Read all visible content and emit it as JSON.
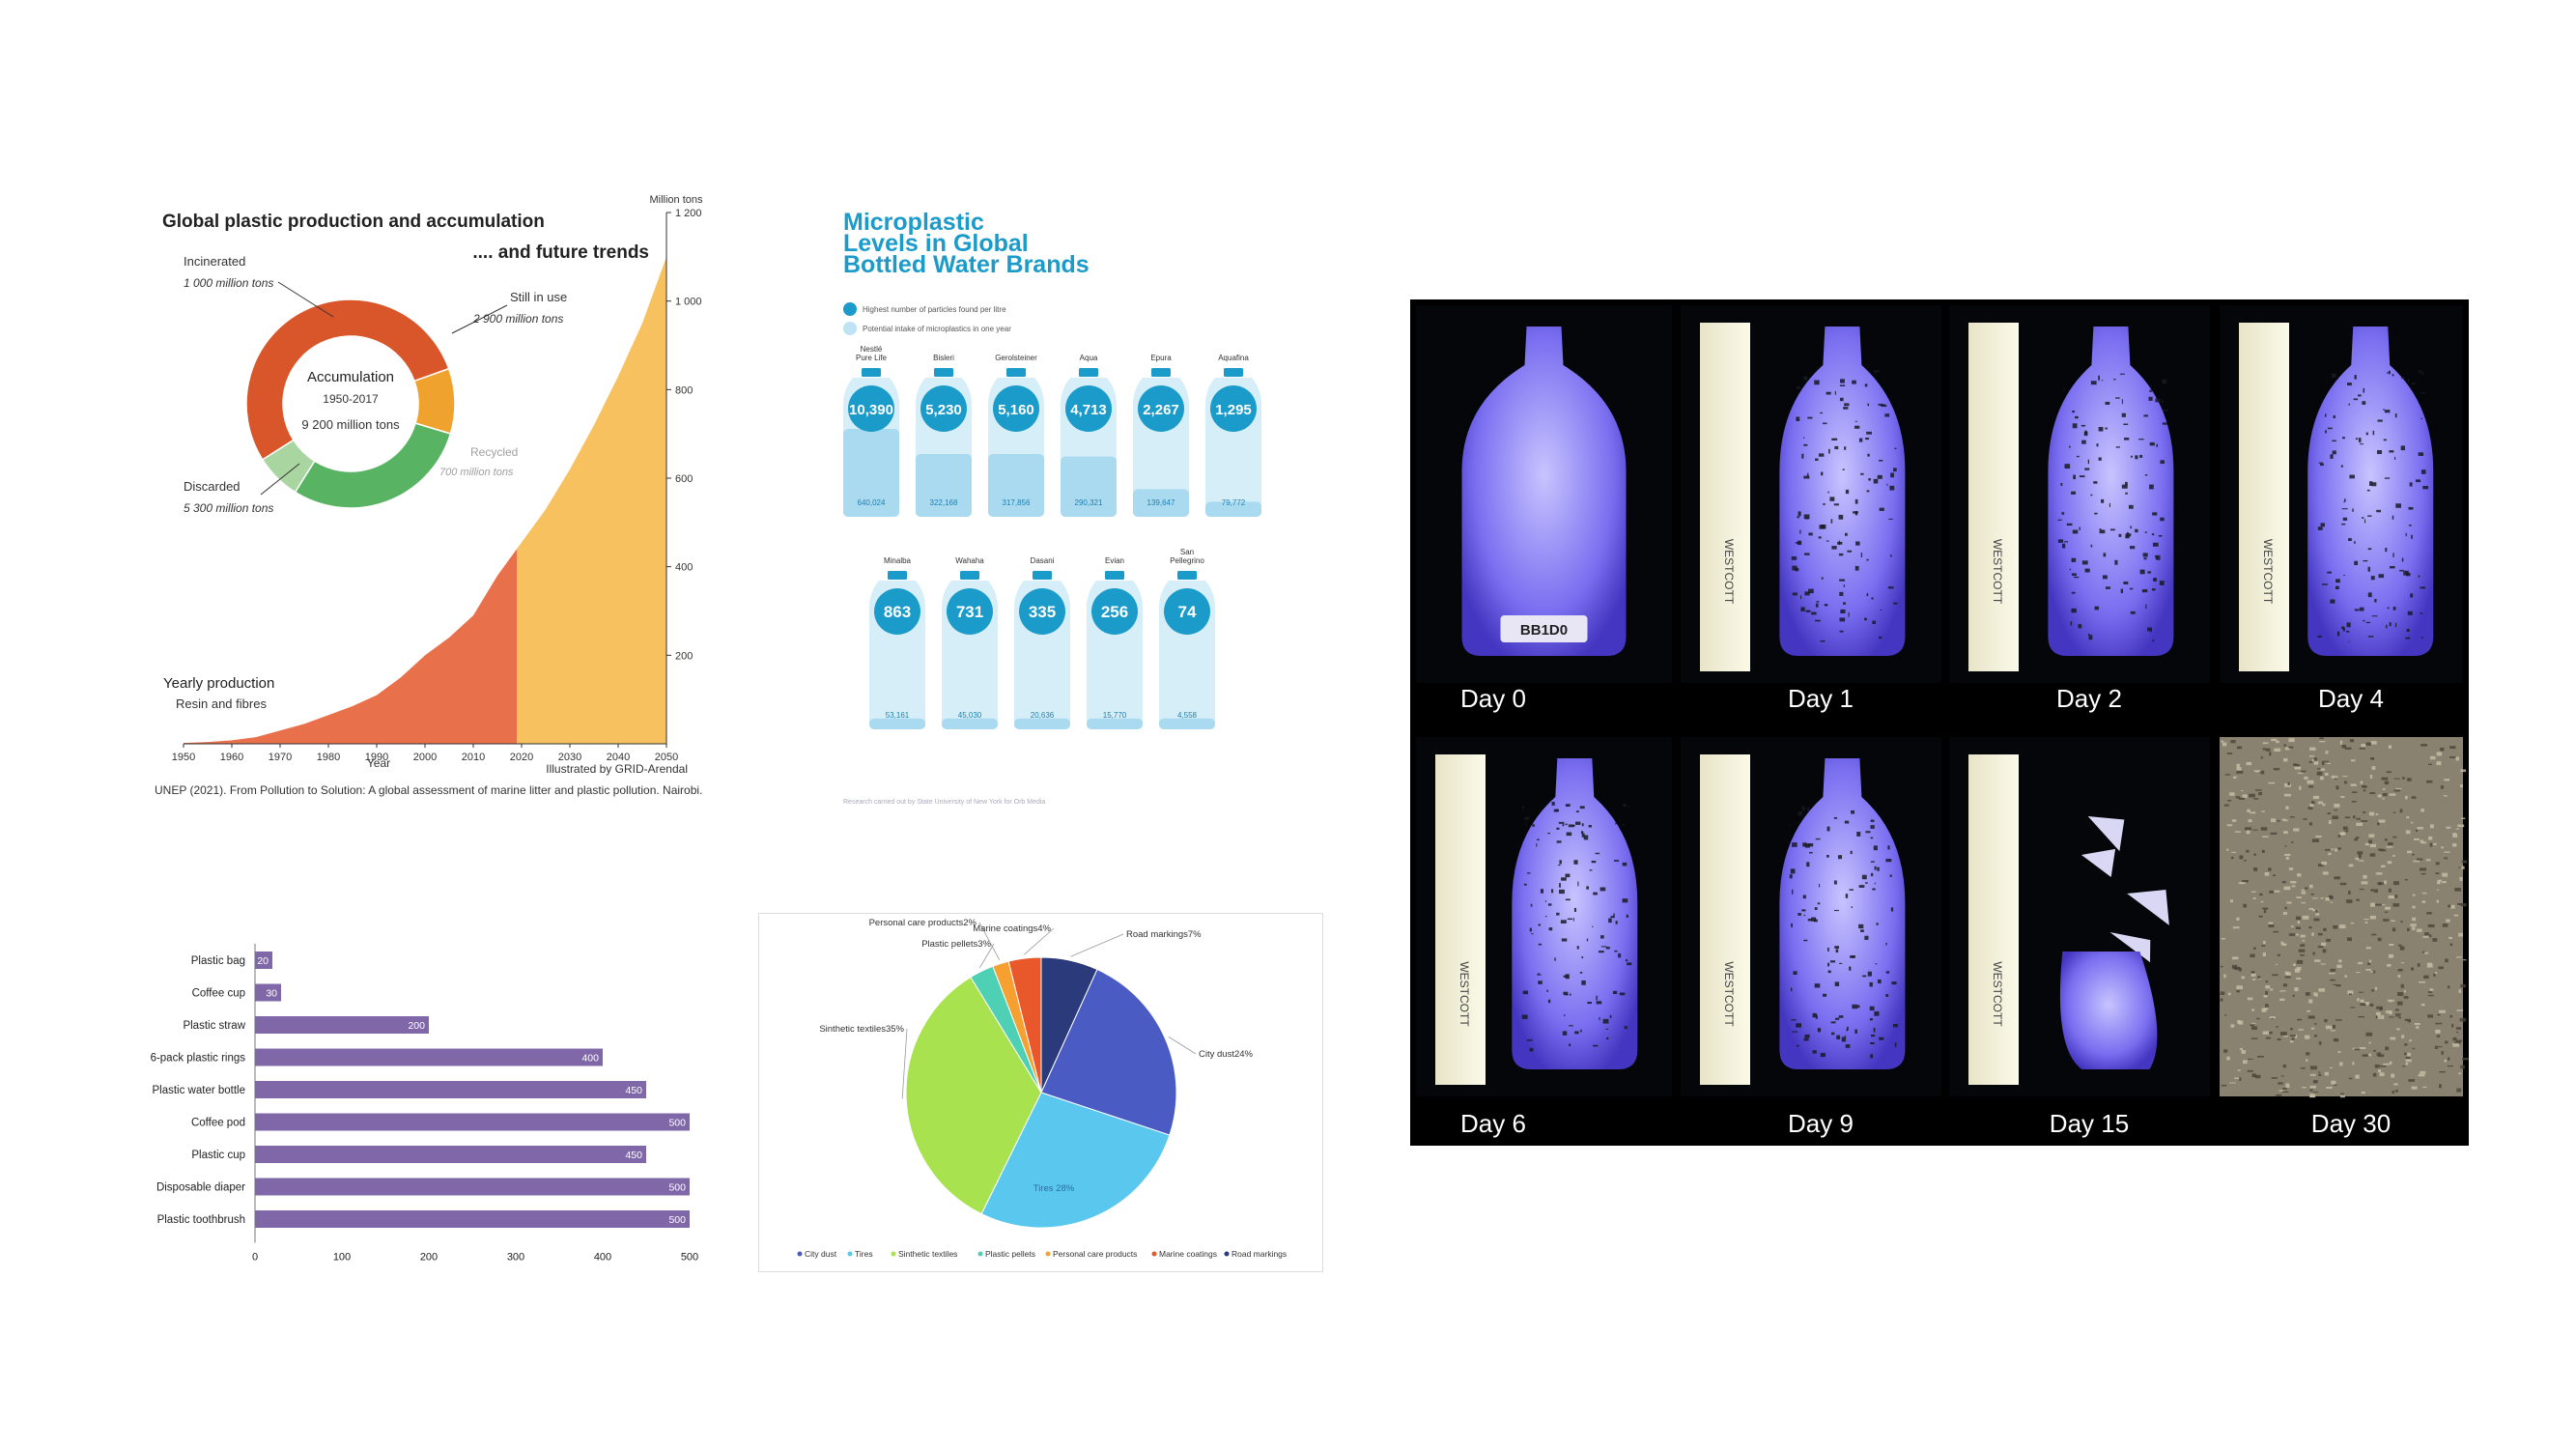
{
  "production_chart": {
    "title": "Global plastic production and accumulation",
    "subtitle": ".... and future trends",
    "unit_label": "Million tons",
    "y_ticks": [
      {
        "v": 200,
        "l": "200"
      },
      {
        "v": 400,
        "l": "400"
      },
      {
        "v": 600,
        "l": "600"
      },
      {
        "v": 800,
        "l": "800"
      },
      {
        "v": 1000,
        "l": "1 000"
      },
      {
        "v": 1200,
        "l": "1 200"
      }
    ],
    "x_ticks": [
      "1950",
      "1960",
      "1970",
      "1980",
      "1990",
      "2000",
      "2010",
      "2020",
      "2030",
      "2040",
      "2050"
    ],
    "xlabel": "Year",
    "yearly_label": "Yearly production",
    "yearly_sublabel": "Resin and fibres",
    "credit": "Illustrated by GRID-Arendal",
    "source": "UNEP (2021). From Pollution to Solution: A global assessment of marine litter and plastic pollution. Nairobi.",
    "donut": {
      "center_title": "Accumulation",
      "center_years": "1950-2017",
      "center_total": "9 200 million tons",
      "incinerated_label": "Incinerated",
      "incinerated_value": "1 000 million tons",
      "in_use_label": "Still in use",
      "in_use_value": "2 900 million tons",
      "recycled_label": "Recycled",
      "recycled_value": "700 million tons",
      "discarded_label": "Discarded",
      "discarded_value": "5 300  million tons",
      "colors": {
        "discarded": "#d9562b",
        "incinerated": "#f0a22e",
        "in_use": "#58b462",
        "recycled": "#a8d5a0"
      }
    }
  },
  "chart_data": [
    {
      "type": "area",
      "title": "Global plastic production and accumulation",
      "xlabel": "Year",
      "ylabel": "Million tons",
      "x": [
        1950,
        1955,
        1960,
        1965,
        1970,
        1975,
        1980,
        1985,
        1990,
        1995,
        2000,
        2005,
        2010,
        2015,
        2019,
        2025,
        2030,
        2035,
        2040,
        2045,
        2050
      ],
      "y": [
        2,
        4,
        8,
        15,
        30,
        45,
        65,
        85,
        110,
        150,
        200,
        240,
        290,
        380,
        440,
        530,
        620,
        720,
        830,
        950,
        1100
      ],
      "projection_from": 2019,
      "ylim": [
        0,
        1200
      ],
      "xlim": [
        1950,
        2050
      ],
      "colors": {
        "historic": "#e8704a",
        "projected": "#f7c15f"
      }
    },
    {
      "type": "pie",
      "title": "",
      "categories": [
        "Discarded",
        "Incinerated",
        "Still in use",
        "Recycled"
      ],
      "values": [
        5300,
        1000,
        2900,
        700
      ]
    },
    {
      "type": "bar",
      "title": "Microplastic Levels in Global Bottled Water Brands",
      "categories": [
        "Nestlé Pure Life",
        "Bisleri",
        "Gerolsteiner",
        "Aqua",
        "Epura",
        "Aquafina",
        "Minalba",
        "Wahaha",
        "Dasani",
        "Evian",
        "San Pellegrino"
      ],
      "series": [
        {
          "name": "Highest number of particles found per litre",
          "values": [
            10390,
            5230,
            5160,
            4713,
            2267,
            1295,
            863,
            731,
            335,
            256,
            74
          ]
        },
        {
          "name": "Potential intake of microplastics in one year",
          "values": [
            640024,
            322168,
            317856,
            290321,
            139647,
            79772,
            53161,
            45030,
            20636,
            15770,
            4558
          ]
        }
      ]
    },
    {
      "type": "bar",
      "orientation": "horizontal",
      "title": "",
      "categories": [
        "Plastic bag",
        "Coffee cup",
        "Plastic straw",
        "6-pack plastic rings",
        "Plastic water bottle",
        "Coffee pod",
        "Plastic cup",
        "Disposable diaper",
        "Plastic toothbrush"
      ],
      "values": [
        20,
        30,
        200,
        400,
        450,
        500,
        450,
        500,
        500
      ],
      "xlim": [
        0,
        500
      ],
      "x_ticks": [
        0,
        100,
        200,
        300,
        400,
        500
      ],
      "color": "#8068a8"
    },
    {
      "type": "pie",
      "title": "",
      "categories": [
        "City dust",
        "Tires",
        "Sinthetic textiles",
        "Plastic pellets",
        "Personal care products",
        "Marine coatings",
        "Road markings"
      ],
      "values": [
        24,
        28,
        35,
        3,
        2,
        4,
        7
      ],
      "slice_labels": [
        "City dust24%",
        "Tires 28%",
        "Sinthetic textiles35%",
        "Plastic pellets3%",
        "Personal care products2%",
        "Marine coatings4%",
        "Road markings7%"
      ],
      "colors": [
        "#4a5cc4",
        "#5ac8ee",
        "#a8e24e",
        "#4dd0b4",
        "#f5a030",
        "#e8582a",
        "#2a3a7a"
      ],
      "legend_position": "bottom"
    }
  ],
  "microplastic": {
    "title_lines": [
      "Microplastic",
      "Levels in Global",
      "Bottled Water Brands"
    ],
    "legend": [
      "Highest number of particles found per litre",
      "Potential intake of microplastics in one year"
    ],
    "brand_names": [
      "Nestlé\nPure Life",
      "Bisleri",
      "Gerolsteiner",
      "Aqua",
      "Epura",
      "Aquafina",
      "Minalba",
      "Wahaha",
      "Dasani",
      "Evian",
      "San\nPellegrino"
    ],
    "big_labels": [
      "10,390",
      "5,230",
      "5,160",
      "4,713",
      "2,267",
      "1,295",
      "863",
      "731",
      "335",
      "256",
      "74"
    ],
    "small_labels": [
      "640,024",
      "322,168",
      "317,856",
      "290,321",
      "139,647",
      "79,772",
      "53,161",
      "45,030",
      "20,636",
      "15,770",
      "4,558"
    ],
    "fill_fraction": [
      0.7,
      0.5,
      0.5,
      0.48,
      0.22,
      0.12,
      0.08,
      0.07,
      0.04,
      0.03,
      0.02
    ],
    "footnote": "Research carried out by State University of New York for Orb Media",
    "colors": {
      "accent": "#1a9bc9",
      "bottle": "#d6eef8",
      "fill": "#a9daf0"
    }
  },
  "degradation": {
    "day_labels": [
      "Day 0",
      "Day 1",
      "Day 2",
      "Day 4",
      "Day 6",
      "Day 9",
      "Day 15",
      "Day 30"
    ],
    "sample_label": "BB1D0",
    "ruler_text": "WESTCOTT"
  }
}
